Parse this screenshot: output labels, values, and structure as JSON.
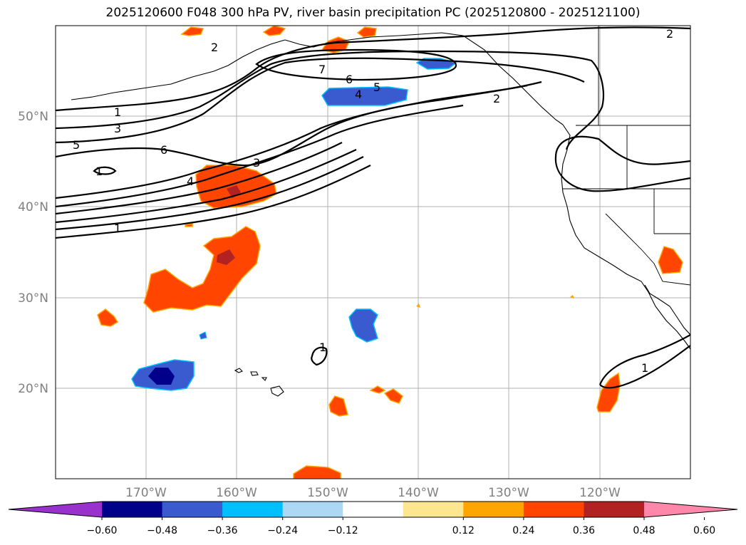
{
  "title": "2025120600 F048 300 hPa PV, river basin precipitation PC (2025120800 - 2025121100)",
  "lat_labels": [
    "50°N",
    "40°N",
    "30°N",
    "20°N"
  ],
  "lon_labels": [
    "170°W",
    "160°W",
    "150°W",
    "140°W",
    "130°W",
    "120°W"
  ],
  "contour_labels": [
    "1",
    "3",
    "5",
    "6",
    "1",
    "4",
    "3",
    "1",
    "2",
    "7",
    "6",
    "4",
    "5",
    "2",
    "2",
    "1",
    "1"
  ],
  "colorbar": {
    "ticks": [
      "−0.60",
      "−0.48",
      "−0.36",
      "−0.24",
      "−0.12",
      "0.12",
      "0.24",
      "0.36",
      "0.48",
      "0.60"
    ],
    "colors": [
      "#9932cc",
      "#00008b",
      "#3a5bcf",
      "#00bfff",
      "#add8f5",
      "#ffffff",
      "#fce68f",
      "#ffa500",
      "#ff4500",
      "#b22222",
      "#ff88aa"
    ]
  },
  "chart_data": {
    "type": "map",
    "title": "2025120600 F048 300 hPa PV, river basin precipitation PC (2025120800 - 2025121100)",
    "extent_lon": [
      -180,
      -110
    ],
    "extent_lat": [
      10,
      60
    ],
    "variable_contours": "300 hPa PV (PVU)",
    "contour_levels": [
      1,
      2,
      3,
      4,
      5,
      6,
      7
    ],
    "shaded_variable": "river basin precipitation PC",
    "shading_levels": [
      -0.6,
      -0.48,
      -0.36,
      -0.24,
      -0.12,
      0.12,
      0.24,
      0.36,
      0.48,
      0.6
    ]
  }
}
